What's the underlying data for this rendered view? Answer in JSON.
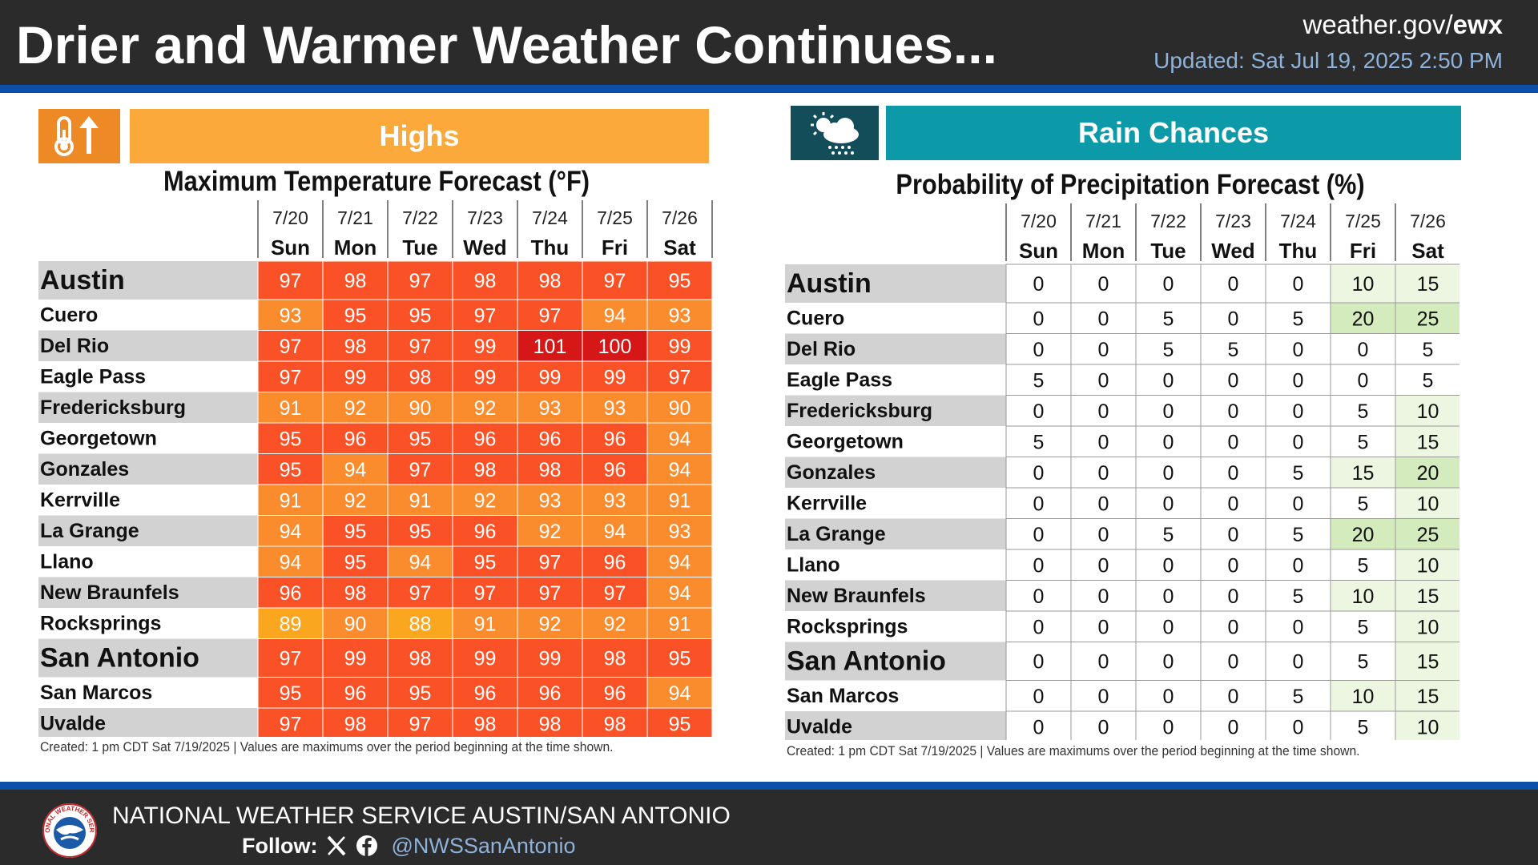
{
  "header": {
    "title": "Drier and Warmer Weather Continues...",
    "site_prefix": "weather.gov/",
    "site_office": "ewx",
    "updated": "Updated: Sat Jul 19, 2025 2:50 PM"
  },
  "footer": {
    "office": "NATIONAL WEATHER SERVICE AUSTIN/SAN ANTONIO",
    "follow_label": "Follow:",
    "handle": "@NWSSanAntonio",
    "logo_text": "NATIONAL WEATHER SERVICE"
  },
  "colors": {
    "header_bg": "#2b2b2b",
    "stripe": "#0b4fa8",
    "highs_banner": "#fba93b",
    "highs_icon_box": "#ee8a26",
    "rain_banner": "#0d9aa8",
    "rain_icon_box": "#144d5a",
    "temp_88_89": "#fba61f",
    "temp_90_94": "#fb8c2e",
    "temp_95_99": "#fa5226",
    "temp_100_plus": "#d51718",
    "pop_low": "#ffffff",
    "pop_10_15": "#ecf6e1",
    "pop_20_25": "#d3ebbd"
  },
  "icons": {
    "highs": "thermometer-up-icon",
    "rain": "sun-cloud-rain-icon",
    "footer_logo": "nws-logo",
    "social": [
      "x-icon",
      "facebook-icon"
    ]
  },
  "highs": {
    "banner": "Highs",
    "note": "Created: 1 pm CDT Sat 7/19/2025  |  Values are maximums over the period beginning at the time shown."
  },
  "rain": {
    "banner": "Rain Chances",
    "note": "Created: 1 pm CDT Sat 7/19/2025  |  Values are maximums over the period beginning at the time shown."
  },
  "chart_data": [
    {
      "type": "table",
      "title": "Maximum Temperature Forecast (°F)",
      "dates": [
        "7/20",
        "7/21",
        "7/22",
        "7/23",
        "7/24",
        "7/25",
        "7/26"
      ],
      "days": [
        "Sun",
        "Mon",
        "Tue",
        "Wed",
        "Thu",
        "Fri",
        "Sat"
      ],
      "rows": [
        {
          "name": "Austin",
          "major": true,
          "values": [
            97,
            98,
            97,
            98,
            98,
            97,
            95
          ]
        },
        {
          "name": "Cuero",
          "values": [
            93,
            95,
            95,
            97,
            97,
            94,
            93
          ]
        },
        {
          "name": "Del Rio",
          "values": [
            97,
            98,
            97,
            99,
            101,
            100,
            99
          ]
        },
        {
          "name": "Eagle Pass",
          "values": [
            97,
            99,
            98,
            99,
            99,
            99,
            97
          ]
        },
        {
          "name": "Fredericksburg",
          "values": [
            91,
            92,
            90,
            92,
            93,
            93,
            90
          ]
        },
        {
          "name": "Georgetown",
          "values": [
            95,
            96,
            95,
            96,
            96,
            96,
            94
          ]
        },
        {
          "name": "Gonzales",
          "values": [
            95,
            94,
            97,
            98,
            98,
            96,
            94
          ]
        },
        {
          "name": "Kerrville",
          "values": [
            91,
            92,
            91,
            92,
            93,
            93,
            91
          ]
        },
        {
          "name": "La Grange",
          "values": [
            94,
            95,
            95,
            96,
            92,
            94,
            93
          ]
        },
        {
          "name": "Llano",
          "values": [
            94,
            95,
            94,
            95,
            97,
            96,
            94
          ]
        },
        {
          "name": "New Braunfels",
          "values": [
            96,
            98,
            97,
            97,
            97,
            97,
            94
          ]
        },
        {
          "name": "Rocksprings",
          "values": [
            89,
            90,
            88,
            91,
            92,
            92,
            91
          ]
        },
        {
          "name": "San Antonio",
          "major": true,
          "values": [
            97,
            99,
            98,
            99,
            99,
            98,
            95
          ]
        },
        {
          "name": "San Marcos",
          "values": [
            95,
            96,
            95,
            96,
            96,
            96,
            94
          ]
        },
        {
          "name": "Uvalde",
          "values": [
            97,
            98,
            97,
            98,
            98,
            98,
            95
          ]
        }
      ]
    },
    {
      "type": "table",
      "title": "Probability of Precipitation Forecast (%)",
      "dates": [
        "7/20",
        "7/21",
        "7/22",
        "7/23",
        "7/24",
        "7/25",
        "7/26"
      ],
      "days": [
        "Sun",
        "Mon",
        "Tue",
        "Wed",
        "Thu",
        "Fri",
        "Sat"
      ],
      "rows": [
        {
          "name": "Austin",
          "major": true,
          "values": [
            0,
            0,
            0,
            0,
            0,
            10,
            15
          ]
        },
        {
          "name": "Cuero",
          "values": [
            0,
            0,
            5,
            0,
            5,
            20,
            25
          ]
        },
        {
          "name": "Del Rio",
          "values": [
            0,
            0,
            5,
            5,
            0,
            0,
            5
          ]
        },
        {
          "name": "Eagle Pass",
          "values": [
            5,
            0,
            0,
            0,
            0,
            0,
            5
          ]
        },
        {
          "name": "Fredericksburg",
          "values": [
            0,
            0,
            0,
            0,
            0,
            5,
            10
          ]
        },
        {
          "name": "Georgetown",
          "values": [
            5,
            0,
            0,
            0,
            0,
            5,
            15
          ]
        },
        {
          "name": "Gonzales",
          "values": [
            0,
            0,
            0,
            0,
            5,
            15,
            20
          ]
        },
        {
          "name": "Kerrville",
          "values": [
            0,
            0,
            0,
            0,
            0,
            5,
            10
          ]
        },
        {
          "name": "La Grange",
          "values": [
            0,
            0,
            5,
            0,
            5,
            20,
            25
          ]
        },
        {
          "name": "Llano",
          "values": [
            0,
            0,
            0,
            0,
            0,
            5,
            10
          ]
        },
        {
          "name": "New Braunfels",
          "values": [
            0,
            0,
            0,
            0,
            5,
            10,
            15
          ]
        },
        {
          "name": "Rocksprings",
          "values": [
            0,
            0,
            0,
            0,
            0,
            5,
            10
          ]
        },
        {
          "name": "San Antonio",
          "major": true,
          "values": [
            0,
            0,
            0,
            0,
            0,
            5,
            15
          ]
        },
        {
          "name": "San Marcos",
          "values": [
            0,
            0,
            0,
            0,
            5,
            10,
            15
          ]
        },
        {
          "name": "Uvalde",
          "values": [
            0,
            0,
            0,
            0,
            0,
            5,
            10
          ]
        }
      ]
    }
  ]
}
